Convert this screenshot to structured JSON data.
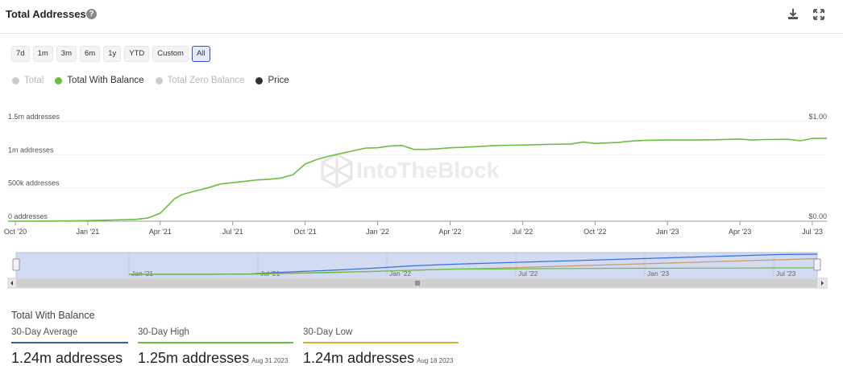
{
  "header": {
    "title": "Total Addresses",
    "help_glyph": "?"
  },
  "range": {
    "buttons": [
      "7d",
      "1m",
      "3m",
      "6m",
      "1y",
      "YTD",
      "Custom",
      "All"
    ],
    "active": "All"
  },
  "legend": [
    {
      "label": "Total",
      "color": "#cccccc",
      "visible": false
    },
    {
      "label": "Total With Balance",
      "color": "#6abf3f",
      "visible": true
    },
    {
      "label": "Total Zero Balance",
      "color": "#cccccc",
      "visible": false
    },
    {
      "label": "Price",
      "color": "#333333",
      "visible": true
    }
  ],
  "chart_data": {
    "type": "line",
    "title": "Total Addresses",
    "watermark": "IntoTheBlock",
    "y_left": {
      "ticks": [
        "0 addresses",
        "500k addresses",
        "1m addresses",
        "1.5m addresses"
      ],
      "values": [
        0,
        500000,
        1000000,
        1500000
      ],
      "ylim": [
        0,
        1500000
      ]
    },
    "y_right": {
      "ticks": [
        "$0.00",
        "$1.00"
      ],
      "values": [
        0,
        1
      ],
      "ylim": [
        0,
        1
      ]
    },
    "x_ticks": [
      "Oct '20",
      "Jan '21",
      "Apr '21",
      "Jul '21",
      "Oct '21",
      "Jan '22",
      "Apr '22",
      "Jul '22",
      "Oct '22",
      "Jan '23",
      "Apr '23",
      "Jul '23"
    ],
    "x_range_months": [
      -0.3,
      33.6
    ],
    "series": [
      {
        "name": "Total With Balance",
        "color": "#6abf3f",
        "x_months": [
          -0.3,
          1,
          2,
          3,
          4,
          5,
          5.5,
          6,
          6.3,
          6.6,
          6.9,
          7.3,
          8,
          8.5,
          9,
          9.5,
          10,
          10.5,
          11,
          11.5,
          12,
          12.5,
          13,
          13.5,
          14,
          14.5,
          15,
          15.5,
          16,
          16.5,
          17,
          17.5,
          18,
          18.5,
          19,
          19.5,
          20,
          21,
          22,
          23,
          23.5,
          24,
          25,
          25.2,
          25.5,
          26,
          27,
          28,
          29,
          30,
          30.5,
          31,
          32,
          32.5,
          33,
          33.6
        ],
        "values": [
          0,
          1000,
          4000,
          9000,
          18000,
          28000,
          50000,
          120000,
          230000,
          340000,
          400000,
          440000,
          505000,
          560000,
          580000,
          600000,
          620000,
          630000,
          650000,
          700000,
          860000,
          930000,
          980000,
          1020000,
          1060000,
          1100000,
          1105000,
          1130000,
          1140000,
          1080000,
          1080000,
          1090000,
          1105000,
          1110000,
          1120000,
          1130000,
          1140000,
          1145000,
          1155000,
          1160000,
          1190000,
          1170000,
          1185000,
          1195000,
          1205000,
          1215000,
          1220000,
          1220000,
          1225000,
          1235000,
          1220000,
          1228000,
          1232000,
          1210000,
          1245000,
          1248000
        ]
      }
    ]
  },
  "navigator": {
    "x_ticks": [
      "Jan '21",
      "Jul '21",
      "Jan '22",
      "Jul '22",
      "Jan '23",
      "Jul '23"
    ],
    "series": [
      {
        "name": "Total",
        "color": "#3a6fd8",
        "values": [
          0,
          0,
          0,
          0.02,
          0.12,
          0.2,
          0.3,
          0.42,
          0.5,
          0.56,
          0.62,
          0.68,
          0.74,
          0.8,
          0.86,
          0.92,
          0.98,
          1.0
        ]
      },
      {
        "name": "Total Zero Balance",
        "color": "#c89b6a",
        "values": [
          0,
          0,
          0,
          0.01,
          0.04,
          0.08,
          0.15,
          0.2,
          0.26,
          0.3,
          0.36,
          0.42,
          0.48,
          0.54,
          0.6,
          0.66,
          0.72,
          0.78
        ]
      },
      {
        "name": "Total With Balance",
        "color": "#6abf3f",
        "values": [
          0,
          0,
          0,
          0.01,
          0.06,
          0.1,
          0.14,
          0.2,
          0.26,
          0.26,
          0.28,
          0.29,
          0.3,
          0.3,
          0.31,
          0.31,
          0.32,
          0.32
        ]
      }
    ]
  },
  "stats": {
    "title": "Total With Balance",
    "items": [
      {
        "label": "30-Day Average",
        "value": "1.24m addresses",
        "date": "",
        "color": "#3a5ea8"
      },
      {
        "label": "30-Day High",
        "value": "1.25m addresses",
        "date": "Aug 31 2023",
        "color": "#6abf3f"
      },
      {
        "label": "30-Day Low",
        "value": "1.24m addresses",
        "date": "Aug 18 2023",
        "color": "#d4b03a"
      }
    ]
  }
}
